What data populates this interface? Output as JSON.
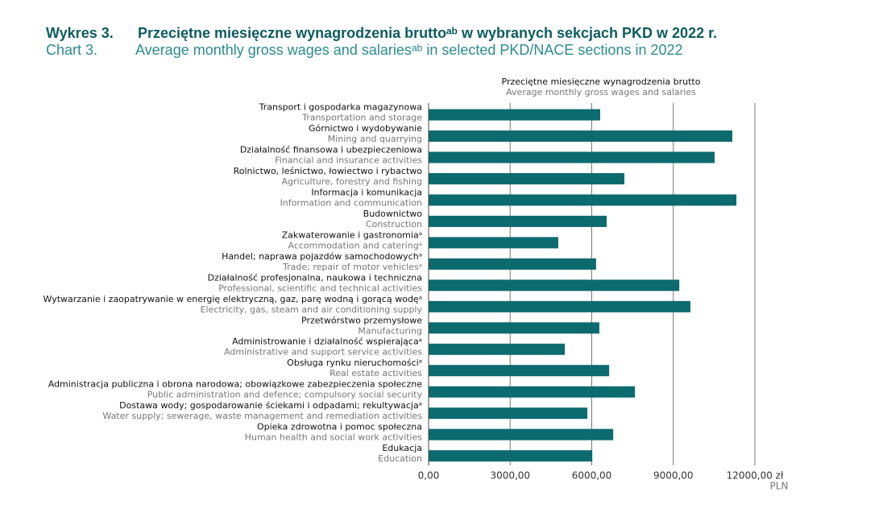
{
  "chart_data": {
    "type": "hbar",
    "title_number_pl": "Wykres 3.",
    "title_pl": "Przeciętne miesięczne wynagrodzenia bruttoᵃᵇ w wybranych sekcjach PKD w 2022 r.",
    "title_number_en": "Chart 3.",
    "title_en": "Average monthly gross wages and salariesᵃᵇ in selected PKD/NACE sections in 2022",
    "axis_title_pl": "Przeciętne miesięczne wynagrodzenia brutto",
    "axis_title_en": "Average monthly gross wages and salaries",
    "x_unit": "PLN",
    "categories": [
      "Transport i gospodarka magazynowa",
      "Górnictwo i wydobywanie",
      "Działalność finansowa i ubezpieczeniowa",
      "Rolnictwo, leśnictwo, łowiectwo i rybactwo",
      "Informacja i komunikacja",
      "Budownictwo",
      "Zakwaterowanie i gastronomiaᵃ",
      "Handel; naprawa pojazdów samochodowychᵃ",
      "Działalność profesjonalna, naukowa i techniczna",
      "Wytwarzanie i zaopatrywanie w energię elektryczną, gaz, parę wodną i gorącą wodęᵃ",
      "Przetwórstwo przemysłowe",
      "Administrowanie i działalność wspierającaᵃ",
      "Obsługa rynku nieruchomościᵃ",
      "Administracja publiczna i obrona narodowa; obowiązkowe zabezpieczenia społeczne",
      "Dostawa wody; gospodarowanie ściekami i odpadami; rekultywacjaᵃ",
      "Opieka zdrowotna i pomoc społeczna",
      "Edukacja"
    ],
    "categories_en": [
      "Transportation and storage",
      "Mining and quarrying",
      "Financial and insurance activities",
      "Agriculture, forestry and fishing",
      "Information and communication",
      "Construction",
      "Accommodation and cateringᵃ",
      "Trade; repair of motor vehiclesᵃ",
      "Professional, scientific and technical activities",
      "Electricity, gas, steam and air conditioning supply",
      "Manufacturing",
      "Administrative and support service activities",
      "Real estate activities",
      "Public administration and defence; compulsory social security",
      "Water supply; sewerage, waste management and remediation activities",
      "Human health and social work activities",
      "Education"
    ],
    "values": [
      6310,
      11170,
      10520,
      7200,
      11320,
      6550,
      4770,
      6160,
      9220,
      9630,
      6280,
      5010,
      6640,
      7590,
      5840,
      6790,
      6020
    ],
    "color": "#0b6b6f",
    "xlim": [
      0,
      12000
    ],
    "xticks": [
      {
        "value": 0,
        "label": "0,00"
      },
      {
        "value": 3000,
        "label": "3000,00"
      },
      {
        "value": 6000,
        "label": "6000,00"
      },
      {
        "value": 9000,
        "label": "9000,00"
      },
      {
        "value": 12000,
        "label": "12000,00 zł"
      }
    ],
    "grid": true
  }
}
